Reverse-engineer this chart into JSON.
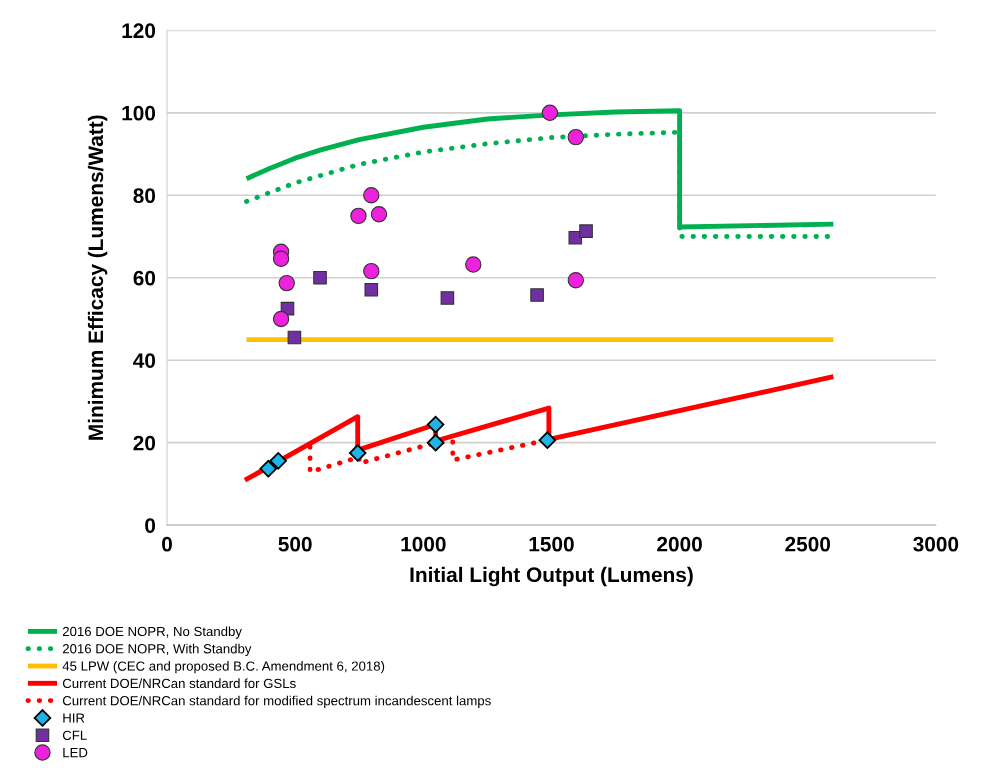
{
  "chart_data": {
    "type": "line",
    "xlabel": "Initial Light Output (Lumens)",
    "ylabel": "Minimum Efficacy (Lumens/Watt)",
    "xlim": [
      0,
      3000
    ],
    "xticks": [
      0,
      500,
      1000,
      1500,
      2000,
      2500,
      3000
    ],
    "ylim": [
      0,
      120
    ],
    "yticks": [
      0,
      20,
      40,
      60,
      80,
      100,
      120
    ],
    "grid": "y",
    "legend": "bottom",
    "series": [
      {
        "name": "2016 DOE NOPR, No Standby",
        "line_style": "solid",
        "color": "#00b050",
        "x": [
          310,
          400,
          500,
          600,
          750,
          1000,
          1250,
          1500,
          1750,
          2000,
          2000,
          2600
        ],
        "values": [
          84,
          86.5,
          89,
          91,
          93.5,
          96.5,
          98.5,
          99.5,
          100.2,
          100.5,
          72.3,
          73
        ]
      },
      {
        "name": "2016 DOE NOPR, With Standby",
        "line_style": "dotted",
        "color": "#00b050",
        "x": [
          310,
          500,
          750,
          1000,
          1250,
          1500,
          1750,
          2000,
          2000,
          2600
        ],
        "values": [
          78.5,
          83,
          87.5,
          90.5,
          92.5,
          94,
          94.8,
          95.3,
          70,
          70
        ]
      },
      {
        "name": "45 LPW (CEC and proposed B.C. Amendment 6, 2018)",
        "line_style": "solid",
        "color": "#ffc000",
        "x": [
          310,
          2600
        ],
        "values": [
          45,
          45
        ]
      },
      {
        "name": "Current DOE/NRCan standard for GSLs",
        "line_style": "solid",
        "color": "#ff0000",
        "x": [
          304,
          744,
          744,
          1048,
          1048,
          1490,
          1490,
          2600
        ],
        "values": [
          10.9,
          26.3,
          18.2,
          24.4,
          20.4,
          28.4,
          20.8,
          36
        ]
      },
      {
        "name": "Current DOE/NRCan standard for modified spectrum incandescent lamps",
        "line_style": "dotted",
        "color": "#ff0000",
        "x": [
          558,
          558,
          750,
          750,
          1050,
          1115,
          1115,
          1490
        ],
        "values": [
          19,
          12.9,
          16.5,
          15,
          20,
          20.2,
          15.8,
          20.7
        ]
      },
      {
        "name": "HIR",
        "type": "scatter",
        "marker": "diamond",
        "color": "#1fb4e8",
        "x": [
          395,
          434,
          744,
          1048,
          1048,
          1484
        ],
        "values": [
          13.7,
          15.6,
          17.5,
          24.4,
          20.0,
          20.6
        ]
      },
      {
        "name": "CFL",
        "type": "scatter",
        "marker": "square",
        "color": "#7030a0",
        "x": [
          470,
          497,
          597,
          797,
          1094,
          1444,
          1593,
          1635
        ],
        "values": [
          52.5,
          45.5,
          60,
          57.1,
          55.1,
          55.8,
          69.7,
          71.3
        ]
      },
      {
        "name": "LED",
        "type": "scatter",
        "marker": "circle",
        "color": "#ee22dd",
        "x": [
          445,
          445,
          467,
          445,
          747,
          797,
          827,
          797,
          1195,
          1494,
          1595,
          1595
        ],
        "values": [
          66.3,
          64.6,
          58.7,
          50.0,
          75,
          80,
          75.4,
          61.6,
          63.2,
          100,
          94.1,
          59.4
        ]
      }
    ]
  }
}
